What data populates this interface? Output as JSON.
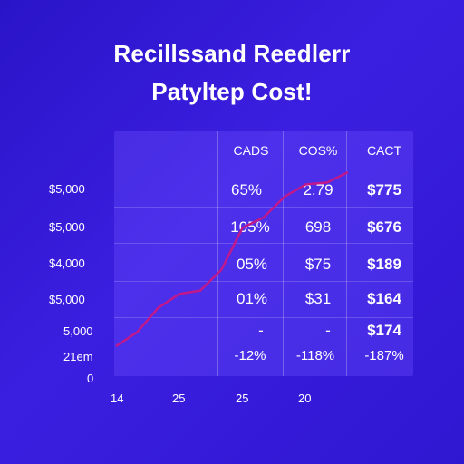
{
  "chart_data": {
    "type": "line",
    "title_line1": "Recillssand Reedlerr",
    "title_line2": "Patyltep Cost!",
    "y_tick_labels": [
      "$5,000",
      "$5,000",
      "$4,000",
      "$5,000",
      "5,000",
      "21em",
      "0"
    ],
    "x_tick_labels": [
      "14",
      "25",
      "25",
      "20"
    ],
    "series": [
      {
        "values": [
          [
            0,
            0
          ],
          [
            1,
            8
          ],
          [
            2,
            22
          ],
          [
            3,
            30
          ],
          [
            4,
            32
          ],
          [
            5,
            44
          ],
          [
            6,
            68
          ],
          [
            7,
            74
          ],
          [
            8,
            86
          ],
          [
            9,
            93
          ],
          [
            10,
            94
          ],
          [
            11,
            100
          ]
        ],
        "color": "#c2188a"
      }
    ],
    "x_range": [
      0,
      11
    ],
    "y_range": [
      0,
      100
    ],
    "table": {
      "columns": [
        "CADS",
        "COS%",
        "CACT"
      ],
      "rows": [
        [
          "65%",
          "2.79",
          "$775"
        ],
        [
          "105%",
          "698",
          "$676"
        ],
        [
          "05%",
          "$75",
          "$189"
        ],
        [
          "01%",
          "$31",
          "$164"
        ],
        [
          "-",
          "-",
          "$174"
        ],
        [
          "-12%",
          "-118%",
          "-187%"
        ]
      ]
    },
    "colors": {
      "background": "#3a1fde",
      "panel": "#6e50ff",
      "line": "#c2188a",
      "text": "#ffffff"
    }
  }
}
